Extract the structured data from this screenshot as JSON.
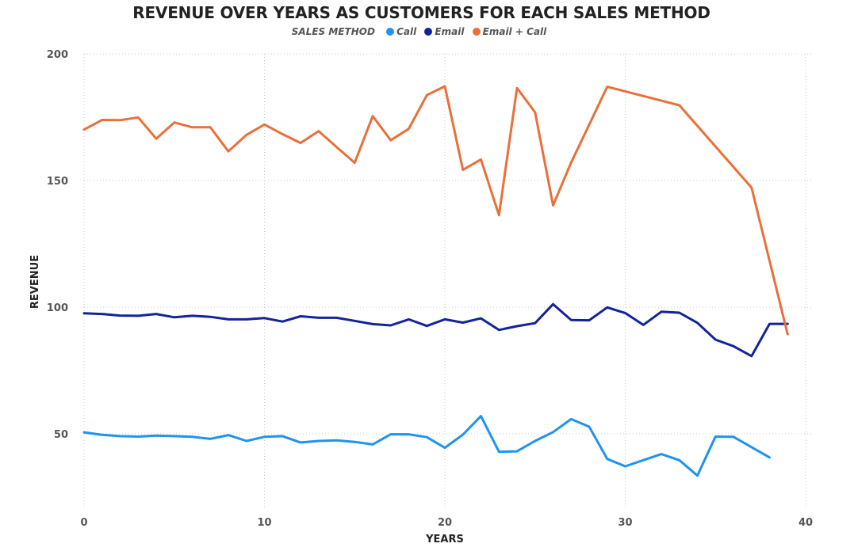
{
  "chart_data": {
    "type": "line",
    "title": "REVENUE OVER YEARS AS CUSTOMERS FOR EACH SALES METHOD",
    "legend": {
      "title": "SALES METHOD",
      "position": "top-center"
    },
    "xlabel": "YEARS",
    "ylabel": "REVENUE",
    "xlim": [
      0,
      40
    ],
    "ylim": [
      20,
      200
    ],
    "xticks": [
      0,
      10,
      20,
      30,
      40
    ],
    "yticks": [
      50,
      100,
      150,
      200
    ],
    "grid": "dotted",
    "series": [
      {
        "name": "Call",
        "color": "#1f93f0",
        "x": [
          0,
          1,
          2,
          3,
          4,
          5,
          6,
          7,
          8,
          9,
          10,
          11,
          12,
          13,
          14,
          15,
          16,
          17,
          18,
          19,
          20,
          21,
          22,
          23,
          24,
          25,
          26,
          27,
          28,
          29,
          30,
          32,
          33,
          34,
          35,
          36,
          38
        ],
        "y": [
          50.6,
          49.6,
          49.1,
          48.9,
          49.3,
          49.1,
          48.8,
          48.0,
          49.5,
          47.2,
          48.8,
          49.1,
          46.6,
          47.2,
          47.4,
          46.8,
          45.8,
          49.8,
          49.8,
          48.7,
          44.5,
          49.7,
          57.0,
          42.9,
          43.1,
          47.2,
          50.7,
          55.8,
          52.8,
          40.1,
          37.2,
          42.0,
          39.6,
          33.5,
          48.9,
          48.8,
          40.7
        ]
      },
      {
        "name": "Email",
        "color": "#13239a",
        "x": [
          0,
          1,
          2,
          3,
          4,
          5,
          6,
          7,
          8,
          9,
          10,
          11,
          12,
          13,
          14,
          15,
          16,
          17,
          18,
          19,
          20,
          21,
          22,
          23,
          24,
          25,
          26,
          27,
          28,
          29,
          30,
          31,
          32,
          33,
          34,
          35,
          36,
          37,
          38,
          39
        ],
        "y": [
          97.6,
          97.3,
          96.7,
          96.6,
          97.3,
          96.0,
          96.6,
          96.2,
          95.2,
          95.2,
          95.7,
          94.3,
          96.4,
          95.8,
          95.8,
          94.6,
          93.3,
          92.8,
          95.2,
          92.6,
          95.2,
          93.9,
          95.6,
          91.0,
          92.5,
          93.7,
          101.2,
          94.9,
          94.8,
          99.9,
          97.7,
          93.0,
          98.2,
          97.8,
          93.8,
          87.2,
          84.6,
          80.7,
          93.4,
          93.4
        ]
      },
      {
        "name": "Email + Call",
        "color": "#e8703a",
        "x": [
          0,
          1,
          2,
          3,
          4,
          5,
          6,
          7,
          8,
          9,
          10,
          11,
          12,
          13,
          14,
          15,
          16,
          17,
          18,
          19,
          20,
          21,
          22,
          23,
          24,
          25,
          26,
          27,
          29,
          33,
          37,
          39
        ],
        "y": [
          170.1,
          173.9,
          173.8,
          174.9,
          166.5,
          172.9,
          171.0,
          171.0,
          161.5,
          168.0,
          172.1,
          168.3,
          164.8,
          169.5,
          163.2,
          157.0,
          175.4,
          165.9,
          170.4,
          183.7,
          187.2,
          154.2,
          158.3,
          136.3,
          186.5,
          176.9,
          140.2,
          157.1,
          187.0,
          179.7,
          147.2,
          89.3
        ]
      }
    ]
  }
}
